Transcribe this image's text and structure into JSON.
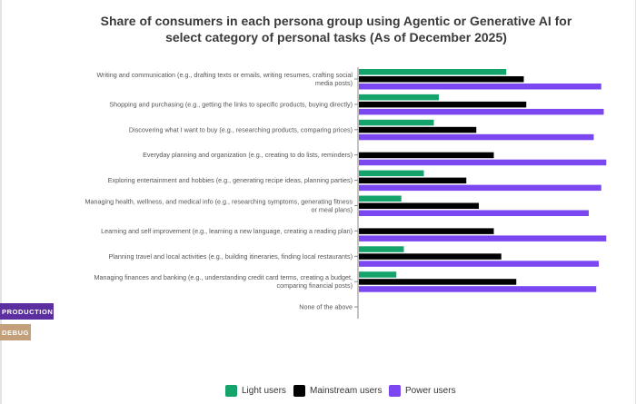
{
  "badges": {
    "production": "PRODUCTION",
    "debug": "DEBUG"
  },
  "chart_data": {
    "type": "bar",
    "orientation": "horizontal",
    "title": "Share of consumers in each persona group using Agentic or Generative AI for select category of personal tasks (As of December 2025)",
    "title_lines": [
      "Share of consumers in each persona group using Agentic or Generative AI for",
      "select category of personal tasks (As of December 2025)"
    ],
    "categories": [
      [
        "Writing and communication (e.g., drafting texts or emails, writing resumes, crafting social",
        "media posts)"
      ],
      [
        "Shopping and purchasing (e.g., getting the links to specific products, buying directly)"
      ],
      [
        "Discovering what I want to buy (e.g., researching products, comparing prices)"
      ],
      [
        "Everyday planning and organization (e.g., creating to do lists, reminders)"
      ],
      [
        "Exploring entertainment and hobbies (e.g., generating recipe ideas, planning parties)"
      ],
      [
        "Managing health, wellness, and medical info (e.g., researching symptoms, generating fitness",
        "or meal plans)"
      ],
      [
        "Learning and self improvement (e.g., learning a new language, creating a reading plan)"
      ],
      [
        "Planning travel and local activities (e.g., building itineraries, finding local restaurants)"
      ],
      [
        "Managing finances and banking (e.g., understanding credit card terms, creating a budget,",
        "comparing financial posts)"
      ],
      [
        "None of the above"
      ]
    ],
    "series": [
      {
        "name": "Light users",
        "color": "#14a36b",
        "values": [
          59,
          32,
          30,
          0,
          26,
          17,
          0,
          18,
          15,
          0
        ]
      },
      {
        "name": "Mainstream users",
        "color": "#000000",
        "values": [
          66,
          67,
          47,
          54,
          43,
          48,
          54,
          57,
          63,
          0
        ]
      },
      {
        "name": "Power users",
        "color": "#7b47f0",
        "values": [
          97,
          98,
          94,
          99,
          97,
          92,
          99,
          96,
          95,
          0
        ]
      }
    ],
    "xlim": [
      0,
      100
    ],
    "grid": false,
    "legend_position": "bottom"
  }
}
